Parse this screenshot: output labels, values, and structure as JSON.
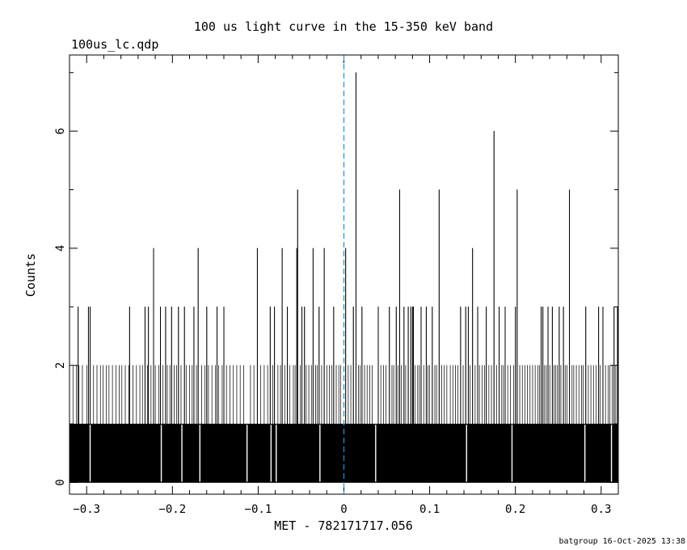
{
  "filename": "100us_lc.qdp",
  "footer": "batgroup 16-Oct-2025 13:38",
  "chart_data": {
    "type": "bar",
    "title": "100 us light curve in the 15-350 keV band",
    "xlabel": "MET - 782171717.056",
    "ylabel": "Counts",
    "xlim": [
      -0.32,
      0.32
    ],
    "ylim": [
      -0.2,
      7.3
    ],
    "bin_width": 0.0001,
    "x_ticks": [
      -0.3,
      -0.2,
      -0.1,
      0,
      0.1,
      0.2,
      0.3
    ],
    "x_tick_labels": [
      "−0.3",
      "−0.2",
      "−0.1",
      "0",
      "0.1",
      "0.2",
      "0.3"
    ],
    "y_ticks": [
      0,
      2,
      4,
      6
    ],
    "y_tick_labels": [
      "0",
      "2",
      "4",
      "6"
    ],
    "trigger_marker": {
      "x": 0,
      "color": "#2a8fd6",
      "style": "dashed"
    },
    "counts_baseline": 1,
    "zero_bins": [
      -0.296,
      -0.213,
      -0.189,
      -0.168,
      -0.113,
      -0.085,
      -0.079,
      -0.028,
      0.037,
      0.143,
      0.196,
      0.281,
      0.312
    ],
    "peaks": [
      {
        "x": -0.31,
        "v": 3
      },
      {
        "x": -0.298,
        "v": 3
      },
      {
        "x": -0.296,
        "v": 3
      },
      {
        "x": -0.25,
        "v": 3
      },
      {
        "x": -0.232,
        "v": 3
      },
      {
        "x": -0.228,
        "v": 3
      },
      {
        "x": -0.222,
        "v": 4
      },
      {
        "x": -0.214,
        "v": 3
      },
      {
        "x": -0.208,
        "v": 3
      },
      {
        "x": -0.201,
        "v": 3
      },
      {
        "x": -0.193,
        "v": 3
      },
      {
        "x": -0.186,
        "v": 3
      },
      {
        "x": -0.175,
        "v": 3
      },
      {
        "x": -0.17,
        "v": 4
      },
      {
        "x": -0.16,
        "v": 3
      },
      {
        "x": -0.148,
        "v": 3
      },
      {
        "x": -0.14,
        "v": 3
      },
      {
        "x": -0.101,
        "v": 4
      },
      {
        "x": -0.086,
        "v": 3
      },
      {
        "x": -0.081,
        "v": 3
      },
      {
        "x": -0.072,
        "v": 4
      },
      {
        "x": -0.066,
        "v": 3
      },
      {
        "x": -0.055,
        "v": 4
      },
      {
        "x": -0.054,
        "v": 5
      },
      {
        "x": -0.049,
        "v": 3
      },
      {
        "x": -0.046,
        "v": 3
      },
      {
        "x": -0.036,
        "v": 4
      },
      {
        "x": -0.029,
        "v": 3
      },
      {
        "x": -0.023,
        "v": 4
      },
      {
        "x": -0.012,
        "v": 3
      },
      {
        "x": 0.002,
        "v": 4
      },
      {
        "x": 0.011,
        "v": 3
      },
      {
        "x": 0.014,
        "v": 7
      },
      {
        "x": 0.021,
        "v": 3
      },
      {
        "x": 0.04,
        "v": 3
      },
      {
        "x": 0.053,
        "v": 3
      },
      {
        "x": 0.061,
        "v": 3
      },
      {
        "x": 0.065,
        "v": 5
      },
      {
        "x": 0.07,
        "v": 3
      },
      {
        "x": 0.075,
        "v": 3
      },
      {
        "x": 0.078,
        "v": 3
      },
      {
        "x": 0.08,
        "v": 3
      },
      {
        "x": 0.081,
        "v": 3
      },
      {
        "x": 0.09,
        "v": 3
      },
      {
        "x": 0.096,
        "v": 3
      },
      {
        "x": 0.103,
        "v": 3
      },
      {
        "x": 0.111,
        "v": 5
      },
      {
        "x": 0.136,
        "v": 3
      },
      {
        "x": 0.142,
        "v": 3
      },
      {
        "x": 0.145,
        "v": 3
      },
      {
        "x": 0.15,
        "v": 4
      },
      {
        "x": 0.156,
        "v": 3
      },
      {
        "x": 0.166,
        "v": 3
      },
      {
        "x": 0.175,
        "v": 6
      },
      {
        "x": 0.181,
        "v": 3
      },
      {
        "x": 0.188,
        "v": 3
      },
      {
        "x": 0.2,
        "v": 3
      },
      {
        "x": 0.202,
        "v": 5
      },
      {
        "x": 0.23,
        "v": 3
      },
      {
        "x": 0.232,
        "v": 3
      },
      {
        "x": 0.238,
        "v": 3
      },
      {
        "x": 0.243,
        "v": 3
      },
      {
        "x": 0.251,
        "v": 3
      },
      {
        "x": 0.256,
        "v": 3
      },
      {
        "x": 0.263,
        "v": 5
      },
      {
        "x": 0.282,
        "v": 3
      },
      {
        "x": 0.297,
        "v": 3
      },
      {
        "x": 0.302,
        "v": 3
      },
      {
        "x": 0.315,
        "v": 3
      },
      {
        "x": 0.319,
        "v": 3
      }
    ],
    "twos": [
      -0.316,
      -0.312,
      -0.309,
      -0.305,
      -0.3,
      -0.292,
      -0.288,
      -0.284,
      -0.281,
      -0.277,
      -0.274,
      -0.27,
      -0.266,
      -0.262,
      -0.259,
      -0.255,
      -0.251,
      -0.246,
      -0.242,
      -0.238,
      -0.235,
      -0.229,
      -0.225,
      -0.22,
      -0.216,
      -0.211,
      -0.206,
      -0.203,
      -0.198,
      -0.195,
      -0.19,
      -0.184,
      -0.18,
      -0.177,
      -0.172,
      -0.166,
      -0.162,
      -0.158,
      -0.154,
      -0.15,
      -0.146,
      -0.142,
      -0.137,
      -0.133,
      -0.129,
      -0.125,
      -0.121,
      -0.117,
      -0.109,
      -0.105,
      -0.097,
      -0.093,
      -0.089,
      -0.083,
      -0.077,
      -0.074,
      -0.069,
      -0.063,
      -0.059,
      -0.057,
      -0.051,
      -0.044,
      -0.041,
      -0.038,
      -0.033,
      -0.031,
      -0.026,
      -0.02,
      -0.017,
      -0.014,
      -0.009,
      -0.006,
      -0.004,
      0.005,
      0.008,
      0.017,
      0.019,
      0.024,
      0.027,
      0.03,
      0.033,
      0.043,
      0.046,
      0.049,
      0.056,
      0.058,
      0.063,
      0.067,
      0.072,
      0.083,
      0.086,
      0.088,
      0.093,
      0.098,
      0.1,
      0.106,
      0.108,
      0.114,
      0.117,
      0.12,
      0.124,
      0.127,
      0.13,
      0.133,
      0.139,
      0.147,
      0.153,
      0.158,
      0.161,
      0.164,
      0.169,
      0.172,
      0.178,
      0.184,
      0.186,
      0.191,
      0.194,
      0.198,
      0.205,
      0.208,
      0.211,
      0.214,
      0.217,
      0.22,
      0.223,
      0.226,
      0.228,
      0.234,
      0.236,
      0.24,
      0.245,
      0.247,
      0.249,
      0.253,
      0.258,
      0.26,
      0.266,
      0.268,
      0.271,
      0.274,
      0.277,
      0.279,
      0.285,
      0.288,
      0.291,
      0.294,
      0.299,
      0.305,
      0.308,
      0.31,
      0.313,
      0.317
    ]
  }
}
